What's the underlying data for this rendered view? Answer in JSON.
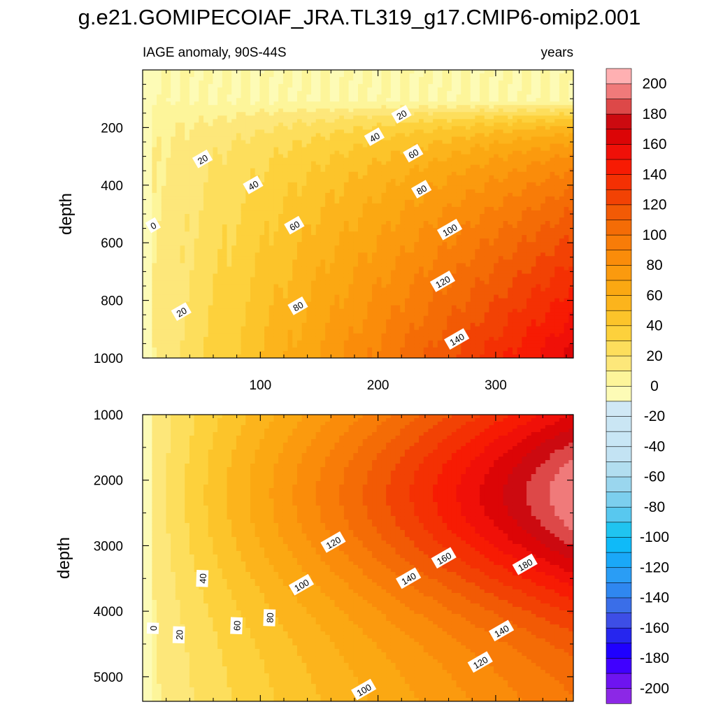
{
  "chart_data": {
    "type": "heatmap",
    "title": "g.e21.GOMIPECOIAF_JRA.TL319_g17.CMIP6-omip2.001",
    "colorbar": {
      "levels": [
        -200,
        -190,
        -180,
        -170,
        -160,
        -150,
        -140,
        -130,
        -120,
        -110,
        -100,
        -90,
        -80,
        -70,
        -60,
        -50,
        -40,
        -30,
        -20,
        -10,
        0,
        10,
        20,
        30,
        40,
        50,
        60,
        70,
        80,
        90,
        100,
        110,
        120,
        130,
        140,
        150,
        160,
        170,
        180,
        190,
        200
      ],
      "labels": [
        "200",
        "180",
        "160",
        "140",
        "120",
        "100",
        "80",
        "60",
        "40",
        "20",
        "0",
        "-20",
        "-40",
        "-60",
        "-80",
        "-100",
        "-120",
        "-140",
        "-160",
        "-180",
        "-200"
      ],
      "label_values": [
        200,
        180,
        160,
        140,
        120,
        100,
        80,
        60,
        40,
        20,
        0,
        -20,
        -40,
        -60,
        -80,
        -100,
        -120,
        -140,
        -160,
        -180,
        -200
      ],
      "colors": [
        "#8c28e6",
        "#6e14f0",
        "#4000ff",
        "#1f00ff",
        "#2626ee",
        "#3d4ee6",
        "#3a6ee8",
        "#2f87f0",
        "#2a9df5",
        "#1aa8f8",
        "#0fbaf8",
        "#20c4f0",
        "#58c8ef",
        "#7ccfee",
        "#9ad6ee",
        "#b2def0",
        "#c3e3f3",
        "#c8e6f5",
        "#cae6f4",
        "#d0e8f5",
        "#fdfbb6",
        "#fdf59a",
        "#fde77a",
        "#fdde5c",
        "#fdd13c",
        "#fcc42a",
        "#fcb41c",
        "#fba812",
        "#fb9a0e",
        "#fa8c0a",
        "#f87c08",
        "#f46c06",
        "#f25a05",
        "#f24204",
        "#f43003",
        "#f71b03",
        "#f01008",
        "#dc0506",
        "#cc0a10",
        "#dd4848",
        "#f07a7a",
        "#ffb0b2"
      ]
    },
    "panels": [
      {
        "name": "upper",
        "left_label": "IAGE anomaly, 90S-44S",
        "right_label": "years",
        "ylabel": "depth",
        "yrange": [
          0,
          1000
        ],
        "y_ticks": [
          200,
          400,
          600,
          800,
          1000
        ],
        "y_tick_labels": [
          "200",
          "400",
          "600",
          "800",
          "1000"
        ],
        "xrange": [
          0,
          366
        ],
        "x_ticks": [
          100,
          200,
          300
        ],
        "x_tick_labels": [
          "100",
          "200",
          "300"
        ],
        "contour_labels": [
          {
            "text": "0",
            "x": 9,
            "y": 540
          },
          {
            "text": "20",
            "x": 51,
            "y": 310
          },
          {
            "text": "20",
            "x": 33,
            "y": 840
          },
          {
            "text": "20",
            "x": 220,
            "y": 155
          },
          {
            "text": "40",
            "x": 94,
            "y": 400
          },
          {
            "text": "40",
            "x": 197,
            "y": 233
          },
          {
            "text": "60",
            "x": 129,
            "y": 540
          },
          {
            "text": "60",
            "x": 230,
            "y": 290
          },
          {
            "text": "80",
            "x": 132,
            "y": 820
          },
          {
            "text": "80",
            "x": 237,
            "y": 415
          },
          {
            "text": "100",
            "x": 261,
            "y": 555
          },
          {
            "text": "120",
            "x": 255,
            "y": 735
          },
          {
            "text": "140",
            "x": 267,
            "y": 935
          }
        ]
      },
      {
        "name": "lower",
        "ylabel": "depth",
        "yrange": [
          1000,
          5375
        ],
        "y_ticks": [
          1000,
          2000,
          3000,
          4000,
          5000
        ],
        "y_tick_labels": [
          "1000",
          "2000",
          "3000",
          "4000",
          "5000"
        ],
        "xrange": [
          0,
          366
        ],
        "x_ticks": [
          100,
          200,
          300
        ],
        "x_tick_labels": [],
        "contour_labels": [
          {
            "text": "0",
            "x": 9,
            "y": 4260
          },
          {
            "text": "20",
            "x": 31,
            "y": 4360
          },
          {
            "text": "40",
            "x": 51,
            "y": 3500
          },
          {
            "text": "60",
            "x": 80,
            "y": 4220
          },
          {
            "text": "80",
            "x": 108,
            "y": 4100
          },
          {
            "text": "100",
            "x": 135,
            "y": 3600
          },
          {
            "text": "120",
            "x": 162,
            "y": 2950
          },
          {
            "text": "100",
            "x": 188,
            "y": 5200
          },
          {
            "text": "120",
            "x": 287,
            "y": 4780
          },
          {
            "text": "140",
            "x": 226,
            "y": 3500
          },
          {
            "text": "140",
            "x": 305,
            "y": 4300
          },
          {
            "text": "160",
            "x": 256,
            "y": 3190
          },
          {
            "text": "180",
            "x": 325,
            "y": 3290
          }
        ]
      }
    ]
  }
}
